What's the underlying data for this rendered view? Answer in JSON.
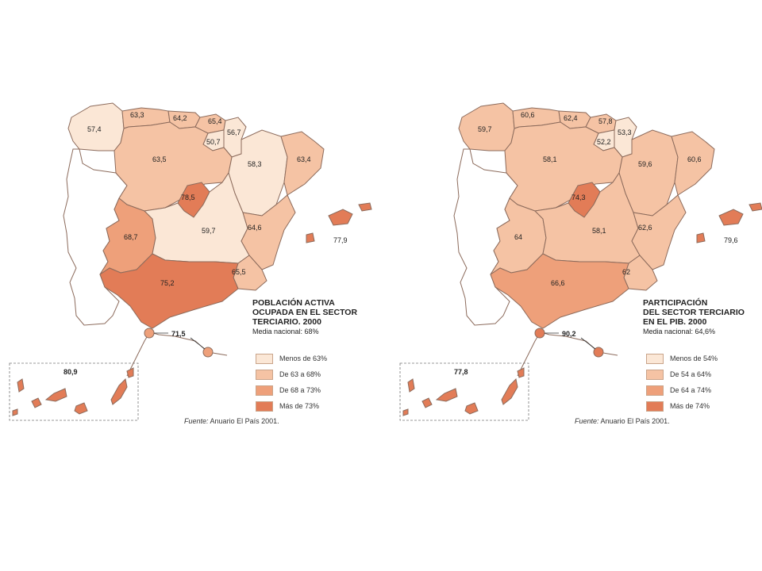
{
  "colors": {
    "c1": "#fbe7d6",
    "c2": "#f5c3a4",
    "c3": "#eea07a",
    "c4": "#e27c57",
    "sea": "#ffffff",
    "border": "#8c6b5c"
  },
  "maps": [
    {
      "title_lines": [
        "POBLACIÓN ACTIVA",
        "OCUPADA EN EL SECTOR",
        "TERCIARIO. 2000"
      ],
      "subtitle": "Media nacional: 68%",
      "legend": [
        {
          "label": "Menos de 63%",
          "color": "#fbe7d6"
        },
        {
          "label": "De 63 a 68%",
          "color": "#f5c3a4"
        },
        {
          "label": "De 68 a 73%",
          "color": "#eea07a"
        },
        {
          "label": "Más de 73%",
          "color": "#e27c57"
        }
      ],
      "source_prefix": "Fuente:",
      "source_text": "Anuario El País 2001.",
      "regions": {
        "galicia": {
          "value": "57,4",
          "cls": 1
        },
        "asturias": {
          "value": "63,3",
          "cls": 2
        },
        "cantabria": {
          "value": "64,2",
          "cls": 2
        },
        "paisvasco": {
          "value": "65,4",
          "cls": 2
        },
        "navarra": {
          "value": "56,7",
          "cls": 1
        },
        "rioja": {
          "value": "50,7",
          "cls": 1
        },
        "aragon": {
          "value": "58,3",
          "cls": 1
        },
        "cataluna": {
          "value": "63,4",
          "cls": 2
        },
        "castillaleon": {
          "value": "63,5",
          "cls": 2
        },
        "madrid": {
          "value": "78,5",
          "cls": 4
        },
        "extremadura": {
          "value": "68,7",
          "cls": 3
        },
        "castillalamancha": {
          "value": "59,7",
          "cls": 1
        },
        "valencia": {
          "value": "64,6",
          "cls": 2
        },
        "murcia": {
          "value": "65,5",
          "cls": 2
        },
        "andalucia": {
          "value": "75,2",
          "cls": 4
        },
        "baleares": {
          "value": "77,9",
          "cls": 4
        },
        "ceutamelilla": {
          "value": "71,5",
          "cls": 3
        },
        "canarias": {
          "value": "80,9",
          "cls": 4
        }
      }
    },
    {
      "title_lines": [
        "PARTICIPACIÓN",
        "DEL SECTOR TERCIARIO",
        "EN EL PIB. 2000"
      ],
      "subtitle": "Media nacional: 64,6%",
      "legend": [
        {
          "label": "Menos de 54%",
          "color": "#fbe7d6"
        },
        {
          "label": "De 54 a 64%",
          "color": "#f5c3a4"
        },
        {
          "label": "De 64 a 74%",
          "color": "#eea07a"
        },
        {
          "label": "Más de 74%",
          "color": "#e27c57"
        }
      ],
      "source_prefix": "Fuente:",
      "source_text": "Anuario El País 2001.",
      "regions": {
        "galicia": {
          "value": "59,7",
          "cls": 2
        },
        "asturias": {
          "value": "60,6",
          "cls": 2
        },
        "cantabria": {
          "value": "62,4",
          "cls": 2
        },
        "paisvasco": {
          "value": "57,8",
          "cls": 2
        },
        "navarra": {
          "value": "53,3",
          "cls": 1
        },
        "rioja": {
          "value": "52,2",
          "cls": 1
        },
        "aragon": {
          "value": "59,6",
          "cls": 2
        },
        "cataluna": {
          "value": "60,6",
          "cls": 2
        },
        "castillaleon": {
          "value": "58,1",
          "cls": 2
        },
        "madrid": {
          "value": "74,3",
          "cls": 4
        },
        "extremadura": {
          "value": "64",
          "cls": 2
        },
        "castillalamancha": {
          "value": "58,1",
          "cls": 2
        },
        "valencia": {
          "value": "62,6",
          "cls": 2
        },
        "murcia": {
          "value": "62",
          "cls": 2
        },
        "andalucia": {
          "value": "66,6",
          "cls": 3
        },
        "baleares": {
          "value": "79,6",
          "cls": 4
        },
        "ceutamelilla": {
          "value": "90,2",
          "cls": 4
        },
        "canarias": {
          "value": "77,8",
          "cls": 4
        }
      }
    }
  ]
}
